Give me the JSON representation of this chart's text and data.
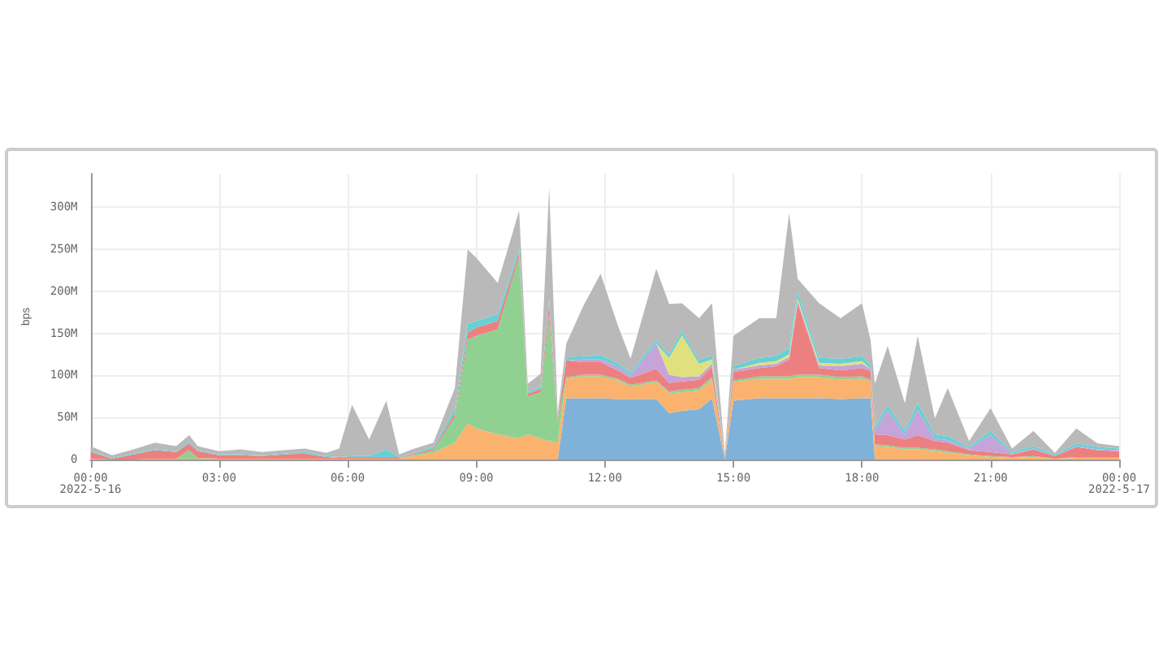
{
  "chart_data": {
    "type": "area",
    "stacked": true,
    "ylabel": "bps",
    "grid": true,
    "marker": "none",
    "xlim": [
      0,
      24
    ],
    "xticks": [
      {
        "value": 0,
        "label": "00:00\n2022-5-16"
      },
      {
        "value": 3,
        "label": "03:00"
      },
      {
        "value": 6,
        "label": "06:00"
      },
      {
        "value": 9,
        "label": "09:00"
      },
      {
        "value": 12,
        "label": "12:00"
      },
      {
        "value": 15,
        "label": "15:00"
      },
      {
        "value": 18,
        "label": "18:00"
      },
      {
        "value": 21,
        "label": "21:00"
      },
      {
        "value": 24,
        "label": "00:00\n2022-5-17"
      }
    ],
    "ylim": [
      0,
      340
    ],
    "yticks": [
      0,
      {
        "value": 50,
        "label": "50M"
      },
      {
        "value": 100,
        "label": "100M"
      },
      {
        "value": 150,
        "label": "150M"
      },
      {
        "value": 200,
        "label": "200M"
      },
      {
        "value": 250,
        "label": "250M"
      },
      {
        "value": 300,
        "label": "300M"
      }
    ],
    "x": [
      0,
      0.5,
      1,
      1.5,
      2,
      2.3,
      2.5,
      3,
      3.5,
      4,
      4.5,
      5,
      5.5,
      5.8,
      6.1,
      6.5,
      6.9,
      7.2,
      7.5,
      8,
      8.5,
      8.8,
      9,
      9.5,
      10,
      10.2,
      10.5,
      10.7,
      10.9,
      11.1,
      11.5,
      11.9,
      12.3,
      12.6,
      13.2,
      13.5,
      13.8,
      14.2,
      14.5,
      14.8,
      15,
      15.6,
      16,
      16.3,
      16.5,
      17,
      17.5,
      18,
      18.2,
      18.3,
      18.6,
      19,
      19.3,
      19.7,
      20,
      20.5,
      21,
      21.5,
      22,
      22.5,
      23,
      23.5,
      24
    ],
    "series": [
      {
        "color": "#7fb2d9",
        "values": [
          null,
          null,
          null,
          null,
          null,
          null,
          null,
          null,
          null,
          null,
          null,
          null,
          null,
          null,
          null,
          null,
          null,
          null,
          null,
          null,
          null,
          null,
          null,
          null,
          null,
          null,
          null,
          null,
          0,
          73,
          73,
          73,
          72,
          72,
          72,
          55,
          58,
          60,
          73,
          0,
          70,
          73,
          73,
          73,
          73,
          73,
          72,
          73,
          73,
          0,
          null,
          null,
          null,
          null,
          null,
          null,
          null,
          null,
          null,
          null,
          null,
          null,
          null
        ]
      },
      {
        "color": "#fbb26e",
        "values": [
          1,
          0,
          0,
          1,
          1,
          1,
          1,
          1,
          1,
          1,
          1,
          1,
          1,
          1,
          1,
          1,
          1,
          1,
          4,
          8,
          20,
          43,
          37,
          30,
          25,
          30,
          25,
          22,
          20,
          23,
          26,
          26,
          22,
          15,
          20,
          24,
          22,
          22,
          22,
          2,
          22,
          23,
          23,
          23,
          25,
          25,
          23,
          23,
          20,
          16,
          15,
          12,
          12,
          10,
          8,
          5,
          3,
          2,
          3,
          1,
          2,
          2,
          2
        ]
      },
      {
        "color": "#90d192",
        "values": [
          null,
          null,
          null,
          null,
          0,
          10,
          1,
          0,
          null,
          null,
          null,
          null,
          null,
          null,
          null,
          null,
          null,
          0,
          1,
          3,
          30,
          100,
          110,
          125,
          216,
          45,
          55,
          150,
          25,
          2,
          2,
          2,
          2,
          2,
          2,
          2,
          3,
          3,
          3,
          0,
          2,
          3,
          3,
          3,
          3,
          3,
          3,
          3,
          2,
          2,
          2,
          2,
          2,
          2,
          2,
          1,
          1,
          1,
          1,
          0,
          1,
          1,
          1
        ]
      },
      {
        "color": "#ec8080",
        "values": [
          8,
          1,
          6,
          10,
          8,
          8,
          8,
          4,
          4,
          3,
          5,
          6,
          2,
          1,
          1,
          1,
          1,
          1,
          1,
          2,
          4,
          8,
          10,
          10,
          5,
          3,
          4,
          14,
          3,
          20,
          15,
          15,
          10,
          8,
          14,
          10,
          10,
          10,
          12,
          2,
          10,
          10,
          12,
          20,
          85,
          8,
          8,
          10,
          10,
          12,
          12,
          10,
          15,
          10,
          10,
          5,
          5,
          3,
          8,
          3,
          12,
          8,
          7
        ]
      },
      {
        "color": "#c6a3d8",
        "values": [
          null,
          null,
          null,
          null,
          null,
          null,
          null,
          null,
          null,
          null,
          null,
          null,
          null,
          null,
          null,
          null,
          null,
          null,
          null,
          null,
          null,
          null,
          null,
          null,
          null,
          null,
          null,
          null,
          null,
          0,
          3,
          3,
          5,
          3,
          30,
          10,
          5,
          4,
          4,
          0,
          3,
          3,
          3,
          3,
          3,
          3,
          5,
          5,
          3,
          3,
          30,
          5,
          30,
          3,
          3,
          2,
          20,
          1,
          1,
          0,
          1,
          1,
          1
        ]
      },
      {
        "color": "#e0e07e",
        "values": [
          null,
          null,
          null,
          null,
          null,
          null,
          null,
          null,
          null,
          null,
          null,
          null,
          null,
          null,
          null,
          null,
          null,
          null,
          null,
          null,
          null,
          null,
          null,
          null,
          null,
          null,
          null,
          null,
          null,
          null,
          null,
          null,
          null,
          null,
          0,
          20,
          50,
          15,
          5,
          0,
          0,
          3,
          3,
          3,
          3,
          3,
          3,
          3,
          0,
          null,
          null,
          null,
          null,
          null,
          null,
          null,
          null,
          null,
          null,
          null,
          null,
          null,
          null
        ]
      },
      {
        "color": "#66d0d4",
        "values": [
          1,
          1,
          1,
          1,
          1,
          2,
          1,
          1,
          1,
          1,
          1,
          2,
          1,
          1,
          2,
          2,
          10,
          1,
          1,
          2,
          6,
          10,
          8,
          8,
          5,
          2,
          3,
          5,
          2,
          4,
          4,
          5,
          4,
          3,
          4,
          4,
          5,
          4,
          5,
          1,
          4,
          6,
          6,
          8,
          8,
          6,
          6,
          6,
          4,
          5,
          6,
          5,
          8,
          5,
          5,
          2,
          5,
          2,
          3,
          2,
          3,
          3,
          2
        ]
      },
      {
        "color": "#b9b9b9",
        "values": [
          6,
          3,
          5,
          8,
          6,
          8,
          5,
          4,
          6,
          4,
          4,
          4,
          4,
          10,
          61,
          20,
          58,
          3,
          5,
          5,
          25,
          89,
          75,
          37,
          45,
          10,
          15,
          132,
          5,
          16,
          60,
          97,
          45,
          17,
          85,
          60,
          33,
          50,
          62,
          2,
          36,
          47,
          45,
          160,
          15,
          65,
          48,
          63,
          30,
          52,
          70,
          33,
          80,
          19,
          57,
          7,
          27,
          4,
          18,
          2,
          18,
          4,
          3
        ]
      }
    ]
  }
}
